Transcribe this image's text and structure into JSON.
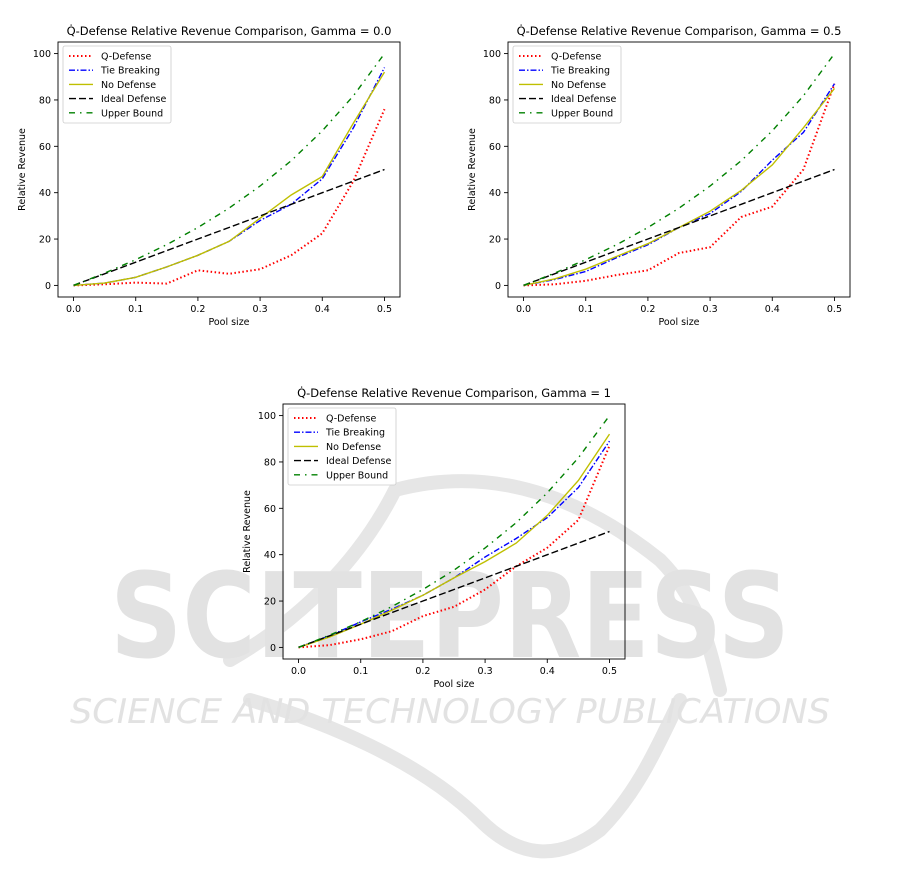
{
  "watermark": {
    "line1": "SCITEPRESS",
    "line2": "SCIENCE AND TECHNOLOGY PUBLICATIONS",
    "color": "#e2e2e2"
  },
  "styles": {
    "Q-Defense": {
      "color": "#ff0000",
      "dash": "dotted"
    },
    "Tie Breaking": {
      "color": "#0000ff",
      "dash": "dashdot"
    },
    "No Defense": {
      "color": "#bfbf00",
      "dash": "solid"
    },
    "Ideal Defense": {
      "color": "#000000",
      "dash": "dashed"
    },
    "Upper Bound": {
      "color": "#008000",
      "dash": "dashdotsparse"
    }
  },
  "chart_data": [
    {
      "type": "line",
      "title": "Q̇-Defense Relative Revenue Comparison, Gamma = 0.0",
      "xlabel": "Pool size",
      "ylabel": "Relative Revenue",
      "xlim": [
        -0.025,
        0.525
      ],
      "ylim": [
        -5,
        105
      ],
      "xticks": [
        "0.0",
        "0.1",
        "0.2",
        "0.3",
        "0.4",
        "0.5"
      ],
      "yticks": [
        "0",
        "20",
        "40",
        "60",
        "80",
        "100"
      ],
      "grid": false,
      "legend": "top-left",
      "x": [
        0,
        0.05,
        0.1,
        0.15,
        0.2,
        0.25,
        0.3,
        0.35,
        0.4,
        0.45,
        0.5
      ],
      "series": [
        {
          "name": "Q-Defense",
          "values": [
            0,
            0.5,
            1.2,
            0.8,
            6.5,
            5,
            7,
            13,
            22.5,
            45,
            76
          ]
        },
        {
          "name": "Tie Breaking",
          "values": [
            0,
            1,
            3.5,
            8,
            13,
            19,
            28,
            35,
            46,
            68,
            94
          ]
        },
        {
          "name": "No Defense",
          "values": [
            0,
            1,
            3.5,
            8,
            13,
            19,
            29,
            39,
            47,
            70,
            92
          ]
        },
        {
          "name": "Ideal Defense",
          "values": [
            0,
            5,
            10,
            15,
            20,
            25,
            30,
            35,
            40,
            45,
            50
          ]
        },
        {
          "name": "Upper Bound",
          "values": [
            0,
            5.3,
            11.1,
            17.6,
            25,
            33.3,
            42.9,
            53.8,
            66.7,
            81.8,
            100
          ]
        }
      ]
    },
    {
      "type": "line",
      "title": "Q̇-Defense Relative Revenue Comparison, Gamma = 0.5",
      "xlabel": "Pool size",
      "ylabel": "Relative Revenue",
      "xlim": [
        -0.025,
        0.525
      ],
      "ylim": [
        -5,
        105
      ],
      "xticks": [
        "0.0",
        "0.1",
        "0.2",
        "0.3",
        "0.4",
        "0.5"
      ],
      "yticks": [
        "0",
        "20",
        "40",
        "60",
        "80",
        "100"
      ],
      "grid": false,
      "legend": "top-left",
      "x": [
        0,
        0.05,
        0.1,
        0.15,
        0.2,
        0.25,
        0.3,
        0.35,
        0.4,
        0.45,
        0.5
      ],
      "series": [
        {
          "name": "Q-Defense",
          "values": [
            0,
            0.5,
            2,
            4.5,
            6.5,
            14,
            16.5,
            29.5,
            34,
            50,
            87
          ]
        },
        {
          "name": "Tie Breaking",
          "values": [
            0,
            2.5,
            6,
            12,
            17.5,
            25,
            31,
            40.5,
            54,
            66,
            87
          ]
        },
        {
          "name": "No Defense",
          "values": [
            0,
            2.8,
            7,
            12.5,
            18,
            25,
            32,
            41,
            52,
            68,
            85
          ]
        },
        {
          "name": "Ideal Defense",
          "values": [
            0,
            5,
            10,
            15,
            20,
            25,
            30,
            35,
            40,
            45,
            50
          ]
        },
        {
          "name": "Upper Bound",
          "values": [
            0,
            5.3,
            11.1,
            17.6,
            25,
            33.3,
            42.9,
            53.8,
            66.7,
            81.8,
            100
          ]
        }
      ]
    },
    {
      "type": "line",
      "title": "Q̇-Defense Relative Revenue Comparison, Gamma = 1",
      "xlabel": "Pool size",
      "ylabel": "Relative Revenue",
      "xlim": [
        -0.025,
        0.525
      ],
      "ylim": [
        -5,
        105
      ],
      "xticks": [
        "0.0",
        "0.1",
        "0.2",
        "0.3",
        "0.4",
        "0.5"
      ],
      "yticks": [
        "0",
        "20",
        "40",
        "60",
        "80",
        "100"
      ],
      "grid": false,
      "legend": "top-left",
      "x": [
        0,
        0.05,
        0.1,
        0.15,
        0.2,
        0.25,
        0.3,
        0.35,
        0.4,
        0.45,
        0.5
      ],
      "series": [
        {
          "name": "Q-Defense",
          "values": [
            0,
            1,
            3.5,
            7,
            13.5,
            17.5,
            25,
            35,
            43,
            55,
            87
          ]
        },
        {
          "name": "Tie Breaking",
          "values": [
            0,
            5,
            11,
            16.5,
            22.5,
            30,
            39,
            47,
            56,
            69,
            89
          ]
        },
        {
          "name": "No Defense",
          "values": [
            0,
            4.5,
            10,
            16,
            22.5,
            30,
            37,
            45,
            57,
            72,
            92
          ]
        },
        {
          "name": "Ideal Defense",
          "values": [
            0,
            5,
            10,
            15,
            20,
            25,
            30,
            35,
            40,
            45,
            50
          ]
        },
        {
          "name": "Upper Bound",
          "values": [
            0,
            5.3,
            11.1,
            17.6,
            25,
            33.3,
            42.9,
            53.8,
            66.7,
            81.8,
            100
          ]
        }
      ]
    }
  ]
}
